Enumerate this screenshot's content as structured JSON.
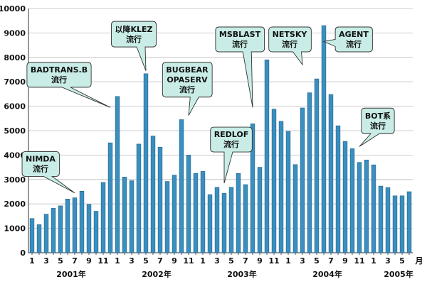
{
  "chart_data": {
    "type": "bar",
    "ylim": [
      0,
      10000
    ],
    "yticks": [
      0,
      1000,
      2000,
      3000,
      4000,
      5000,
      6000,
      7000,
      8000,
      9000,
      10000
    ],
    "x_unit_label": "月",
    "colors": {
      "bar": "#3a8fc0",
      "bar_edge": "#1f5f85",
      "callout_fill": "#c9ede6",
      "callout_edge": "#333333"
    },
    "categories": [
      "2001-01",
      "2001-02",
      "2001-03",
      "2001-04",
      "2001-05",
      "2001-06",
      "2001-07",
      "2001-08",
      "2001-09",
      "2001-10",
      "2001-11",
      "2001-12",
      "2002-01",
      "2002-02",
      "2002-03",
      "2002-04",
      "2002-05",
      "2002-06",
      "2002-07",
      "2002-08",
      "2002-09",
      "2002-10",
      "2002-11",
      "2002-12",
      "2003-01",
      "2003-02",
      "2003-03",
      "2003-04",
      "2003-05",
      "2003-06",
      "2003-07",
      "2003-08",
      "2003-09",
      "2003-10",
      "2003-11",
      "2003-12",
      "2004-01",
      "2004-02",
      "2004-03",
      "2004-04",
      "2004-05",
      "2004-06",
      "2004-07",
      "2004-08",
      "2004-09",
      "2004-10",
      "2004-11",
      "2004-12",
      "2005-01",
      "2005-02",
      "2005-03",
      "2005-04",
      "2005-05",
      "2005-06"
    ],
    "values": [
      1400,
      1150,
      1580,
      1820,
      1920,
      2200,
      2250,
      2520,
      1980,
      1700,
      2880,
      4500,
      6400,
      3100,
      2950,
      4450,
      7330,
      4780,
      4320,
      2920,
      3180,
      5450,
      4000,
      3250,
      3330,
      2380,
      2680,
      2430,
      2680,
      3250,
      2790,
      5280,
      3500,
      7900,
      5880,
      5380,
      4970,
      3610,
      5930,
      6550,
      7120,
      9300,
      6480,
      5200,
      4560,
      4260,
      3700,
      3800,
      3600,
      2730,
      2670,
      2330,
      2330,
      2500
    ],
    "x_tick_labels": [
      "1",
      "",
      "3",
      "",
      "5",
      "",
      "7",
      "",
      "9",
      "",
      "11",
      "",
      "1",
      "",
      "3",
      "",
      "5",
      "",
      "7",
      "",
      "9",
      "",
      "11",
      "",
      "1",
      "",
      "3",
      "",
      "5",
      "",
      "7",
      "",
      "9",
      "",
      "11",
      "",
      "1",
      "",
      "3",
      "",
      "5",
      "",
      "7",
      "",
      "9",
      "",
      "11",
      "",
      "1",
      "",
      "3",
      "",
      "5",
      ""
    ],
    "years": [
      {
        "label": "2001年",
        "center_index": 5.5
      },
      {
        "label": "2002年",
        "center_index": 17.5
      },
      {
        "label": "2003年",
        "center_index": 29.5
      },
      {
        "label": "2004年",
        "center_index": 41.5
      },
      {
        "label": "2005年",
        "center_index": 51.5
      }
    ],
    "annotations": [
      {
        "lines": [
          "NIMDA",
          "流行"
        ],
        "target_index": 6,
        "target_value": 2450,
        "text_at": {
          "index": 1.2,
          "value": 3650
        }
      },
      {
        "lines": [
          "BADTRANS.B",
          "流行"
        ],
        "target_index": 11,
        "target_value": 5950,
        "text_at": {
          "index": 3.8,
          "value": 7300
        }
      },
      {
        "lines": [
          "以降KLEZ",
          "流行"
        ],
        "target_index": 16,
        "target_value": 7450,
        "text_at": {
          "index": 14.3,
          "value": 8950
        }
      },
      {
        "lines": [
          "BUGBEAR",
          "OPASERV",
          "流行"
        ],
        "target_index": 22,
        "target_value": 5620,
        "text_at": {
          "index": 21.8,
          "value": 7100
        }
      },
      {
        "lines": [
          "REDLOF",
          "流行"
        ],
        "target_index": 27,
        "target_value": 2850,
        "text_at": {
          "index": 28.0,
          "value": 4650
        }
      },
      {
        "lines": [
          "MSBLAST",
          "流行"
        ],
        "target_index": 31,
        "target_value": 5950,
        "text_at": {
          "index": 29.2,
          "value": 8750
        }
      },
      {
        "lines": [
          "NETSKY",
          "流行"
        ],
        "target_index": 38,
        "target_value": 7700,
        "text_at": {
          "index": 36.2,
          "value": 8750
        }
      },
      {
        "lines": [
          "AGENT",
          "流行"
        ],
        "target_index": 41,
        "target_value": 8650,
        "text_at": {
          "index": 45.2,
          "value": 8750
        }
      },
      {
        "lines": [
          "BOT系",
          "流行"
        ],
        "target_index": 46,
        "target_value": 4350,
        "text_at": {
          "index": 48.6,
          "value": 5400
        }
      }
    ]
  }
}
